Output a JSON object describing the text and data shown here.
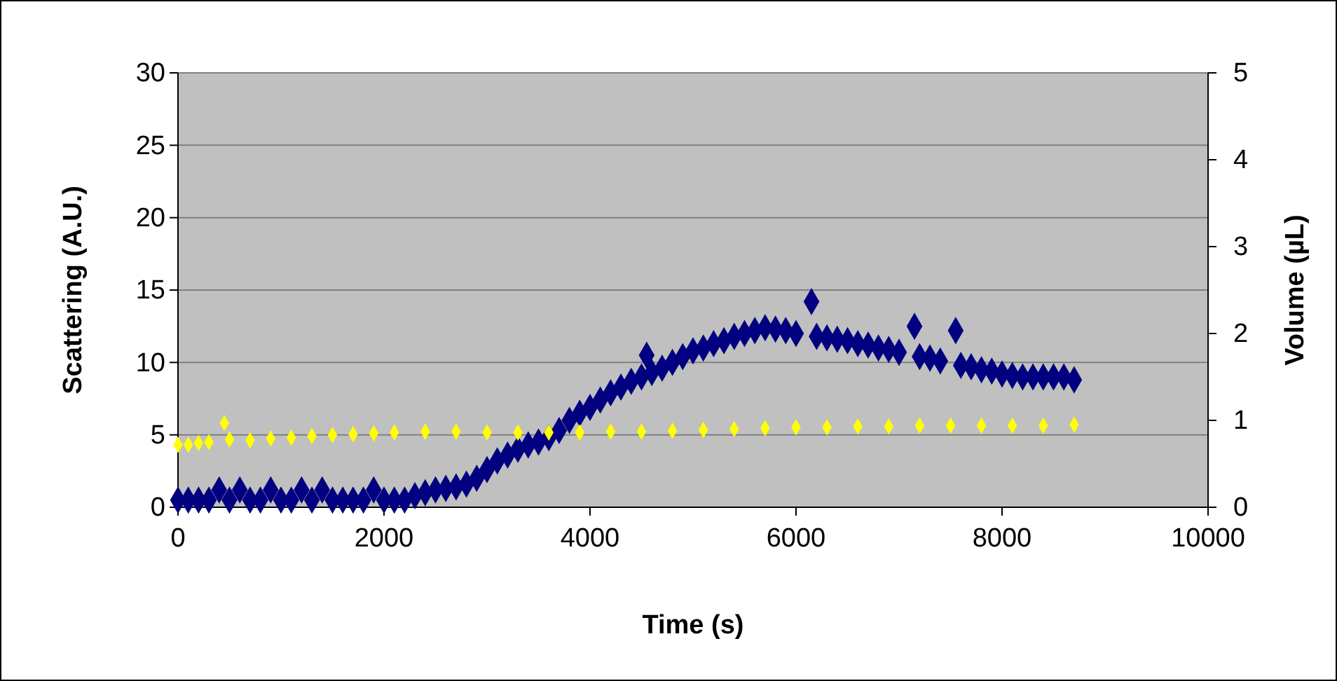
{
  "chart_data": {
    "type": "scatter",
    "xlabel": "Time (s)",
    "ylabel": "Scattering (A.U.)",
    "y2label": "Volume (µL)",
    "xlim": [
      0,
      10000
    ],
    "xticks": [
      0,
      2000,
      4000,
      6000,
      8000,
      10000
    ],
    "ylim": [
      0,
      30
    ],
    "yticks": [
      0,
      5,
      10,
      15,
      20,
      25,
      30
    ],
    "y2lim": [
      0,
      5
    ],
    "y2ticks": [
      0,
      1,
      2,
      3,
      4,
      5
    ],
    "grid": "y",
    "marker": "diamond",
    "series": [
      {
        "color": "#ffff00",
        "axis": "y2",
        "x": [
          0,
          100,
          200,
          300,
          450,
          500,
          700,
          900,
          1100,
          1300,
          1500,
          1700,
          1900,
          2100,
          2400,
          2700,
          3000,
          3300,
          3600,
          3900,
          4200,
          4500,
          4800,
          5100,
          5400,
          5700,
          6000,
          6300,
          6600,
          6900,
          7200,
          7500,
          7800,
          8100,
          8400,
          8700
        ],
        "values": [
          0.72,
          0.72,
          0.74,
          0.75,
          0.97,
          0.78,
          0.77,
          0.79,
          0.8,
          0.82,
          0.83,
          0.84,
          0.85,
          0.86,
          0.87,
          0.87,
          0.86,
          0.86,
          0.86,
          0.86,
          0.87,
          0.87,
          0.88,
          0.89,
          0.9,
          0.91,
          0.92,
          0.92,
          0.93,
          0.93,
          0.94,
          0.94,
          0.94,
          0.94,
          0.94,
          0.95
        ]
      },
      {
        "color": "#000080",
        "x": [
          0,
          100,
          200,
          300,
          400,
          500,
          600,
          700,
          800,
          900,
          1000,
          1100,
          1200,
          1300,
          1400,
          1500,
          1600,
          1700,
          1800,
          1900,
          2000,
          2100,
          2200,
          2300,
          2400,
          2500,
          2600,
          2700,
          2800,
          2900,
          3000,
          3100,
          3200,
          3300,
          3400,
          3500,
          3600,
          3700,
          3800,
          3900,
          4000,
          4100,
          4200,
          4300,
          4400,
          4500,
          4550,
          4600,
          4700,
          4800,
          4900,
          5000,
          5100,
          5200,
          5300,
          5400,
          5500,
          5600,
          5700,
          5800,
          5900,
          6000,
          6150,
          6200,
          6300,
          6400,
          6500,
          6600,
          6700,
          6800,
          6900,
          7000,
          7150,
          7200,
          7300,
          7400,
          7550,
          7600,
          7700,
          7800,
          7900,
          8000,
          8100,
          8200,
          8300,
          8400,
          8500,
          8600,
          8700
        ],
        "values": [
          0.5,
          0.5,
          0.5,
          0.5,
          1.2,
          0.5,
          1.2,
          0.5,
          0.5,
          1.2,
          0.5,
          0.5,
          1.2,
          0.5,
          1.2,
          0.5,
          0.5,
          0.5,
          0.5,
          1.2,
          0.5,
          0.5,
          0.5,
          0.8,
          1.0,
          1.2,
          1.3,
          1.4,
          1.6,
          2.0,
          2.6,
          3.2,
          3.6,
          4.0,
          4.3,
          4.5,
          4.8,
          5.3,
          6.0,
          6.5,
          6.9,
          7.4,
          7.9,
          8.3,
          8.7,
          9.0,
          10.5,
          9.3,
          9.6,
          10.0,
          10.4,
          10.8,
          11.0,
          11.3,
          11.5,
          11.8,
          12.0,
          12.2,
          12.4,
          12.3,
          12.2,
          12.0,
          14.2,
          11.8,
          11.7,
          11.6,
          11.5,
          11.3,
          11.2,
          11.0,
          10.9,
          10.7,
          12.5,
          10.4,
          10.3,
          10.1,
          12.2,
          9.8,
          9.7,
          9.5,
          9.4,
          9.2,
          9.1,
          9.0,
          9.0,
          9.0,
          9.0,
          9.0,
          8.8
        ]
      }
    ]
  }
}
